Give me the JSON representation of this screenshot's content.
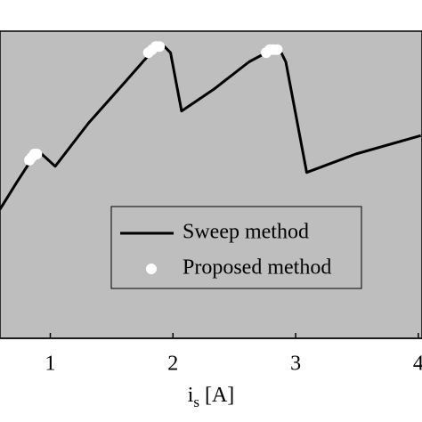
{
  "chart_data": {
    "type": "line",
    "xlabel": "i",
    "xlabel_sub": "s",
    "xlabel_unit": "[A]",
    "xlim": [
      0.59,
      4.03
    ],
    "xticks": [
      1,
      2,
      3,
      4
    ],
    "ylim": [
      0,
      1
    ],
    "background": "#bebebe",
    "legend": "lower-center",
    "series": [
      {
        "name": "Sweep method",
        "color": "#000000",
        "type": "line",
        "x": [
          0.59,
          0.73,
          0.86,
          0.93,
          1.04,
          1.31,
          1.6,
          1.82,
          1.93,
          1.98,
          2.07,
          2.33,
          2.62,
          2.76,
          2.87,
          2.92,
          3.09,
          3.49,
          4.02
        ],
        "values": [
          0.42,
          0.51,
          0.59,
          0.6,
          0.56,
          0.7,
          0.83,
          0.93,
          0.95,
          0.93,
          0.74,
          0.81,
          0.9,
          0.93,
          0.94,
          0.9,
          0.54,
          0.6,
          0.66
        ]
      },
      {
        "name": "Proposed method",
        "color": "#ffffff",
        "type": "scatter",
        "x": [
          0.83,
          0.85,
          0.87,
          0.89,
          1.8,
          1.83,
          1.86,
          1.89,
          2.76,
          2.79,
          2.82,
          2.85
        ],
        "values": [
          0.58,
          0.59,
          0.6,
          0.6,
          0.93,
          0.94,
          0.95,
          0.95,
          0.93,
          0.94,
          0.94,
          0.94
        ]
      }
    ]
  }
}
